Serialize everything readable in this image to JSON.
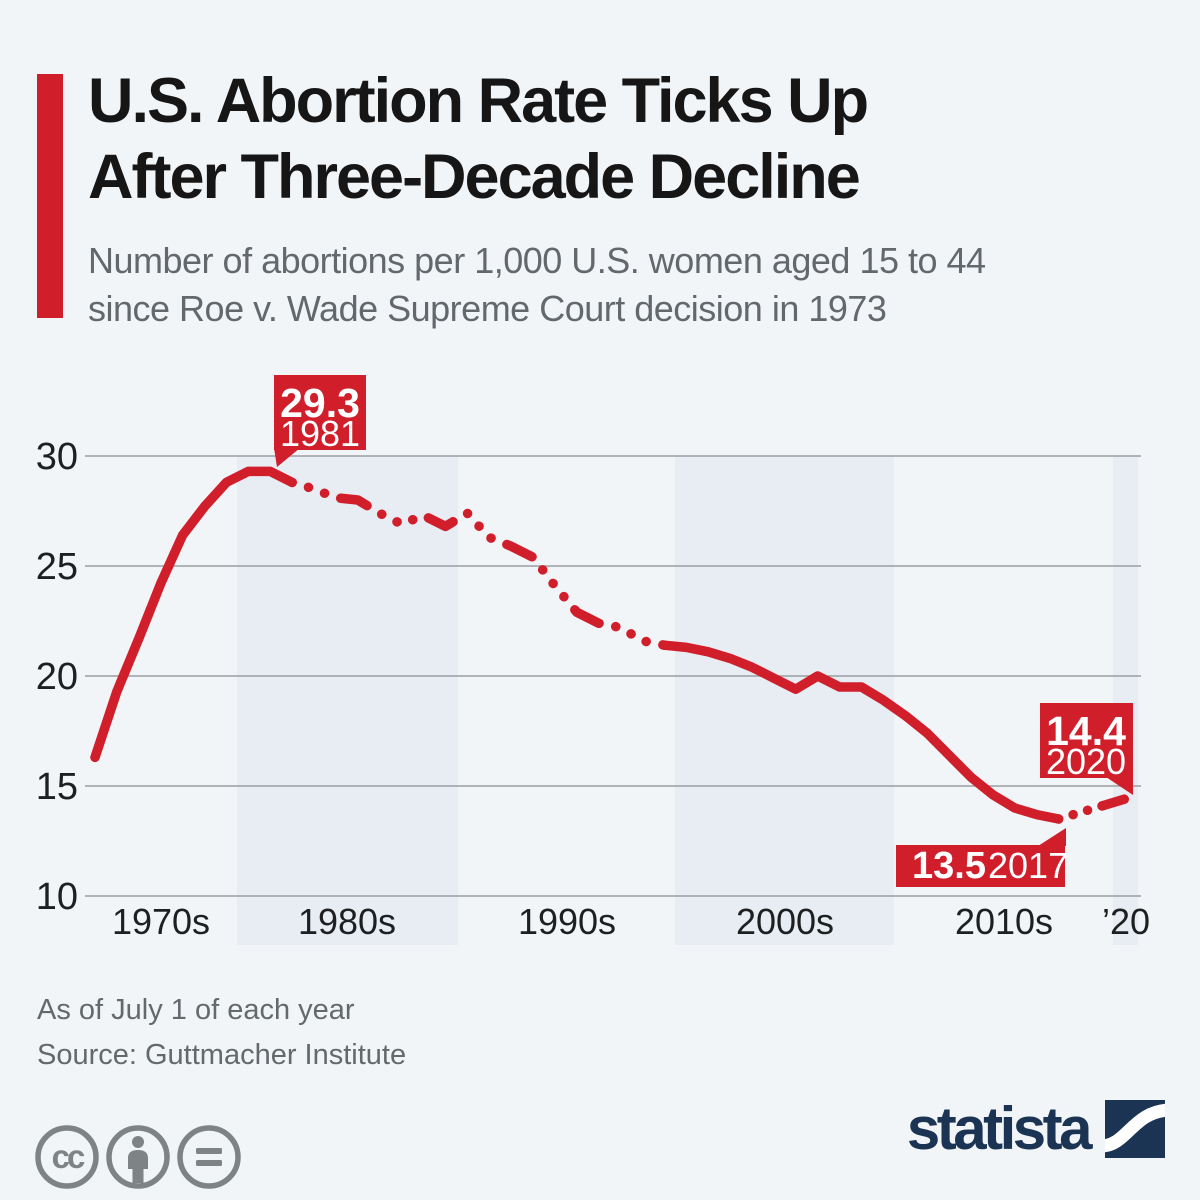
{
  "header": {
    "title_line1": "U.S. Abortion Rate Ticks Up",
    "title_line2": "After Three-Decade Decline",
    "subtitle_line1": "Number of abortions per 1,000 U.S. women aged 15 to 44",
    "subtitle_line2": "since Roe v. Wade Supreme Court decision in 1973",
    "accent_color": "#d11e2b"
  },
  "chart_data": {
    "type": "line",
    "title": "U.S. Abortion Rate Ticks Up After Three-Decade Decline",
    "subtitle": "Number of abortions per 1,000 U.S. women aged 15 to 44 since Roe v. Wade Supreme Court decision in 1973",
    "line_color": "#d11e2b",
    "grid": "horizontal",
    "ylim": [
      10,
      31
    ],
    "y_ticks": [
      "30",
      "25",
      "20",
      "15",
      "10"
    ],
    "x_ticks": [
      "1970s",
      "1980s",
      "1990s",
      "2000s",
      "2010s",
      "’20"
    ],
    "shaded_decades": [
      "1980s",
      "2000s",
      "2020"
    ],
    "x": [
      1973,
      1974,
      1975,
      1976,
      1977,
      1978,
      1979,
      1980,
      1981,
      1982,
      1983,
      1984,
      1985,
      1986,
      1987,
      1988,
      1989,
      1990,
      1991,
      1992,
      1993,
      1994,
      1995,
      1996,
      1997,
      1998,
      1999,
      2000,
      2001,
      2002,
      2003,
      2004,
      2005,
      2006,
      2007,
      2008,
      2009,
      2010,
      2011,
      2012,
      2013,
      2014,
      2015,
      2016,
      2017,
      2018,
      2019,
      2020
    ],
    "values": [
      16.3,
      19.3,
      21.7,
      24.2,
      26.4,
      27.7,
      28.8,
      29.3,
      29.3,
      28.8,
      28.5,
      28.1,
      28.0,
      27.4,
      26.9,
      27.3,
      26.8,
      27.4,
      26.3,
      25.9,
      25.4,
      24.1,
      22.9,
      22.4,
      22.2,
      21.6,
      21.4,
      21.3,
      21.1,
      20.8,
      20.4,
      19.9,
      19.4,
      20.0,
      19.5,
      19.5,
      18.9,
      18.2,
      17.4,
      16.4,
      15.4,
      14.6,
      14.0,
      13.7,
      13.5,
      13.8,
      14.1,
      14.4
    ],
    "segments": [
      {
        "from": 1973,
        "to": 1982,
        "style": "solid"
      },
      {
        "from": 1982,
        "to": 1999,
        "style": "dashdot"
      },
      {
        "from": 1999,
        "to": 2017,
        "style": "solid"
      },
      {
        "from": 2017,
        "to": 2019,
        "style": "dotted"
      },
      {
        "from": 2019,
        "to": 2020,
        "style": "solid"
      }
    ],
    "annotations": [
      {
        "value": "29.3",
        "year": "1981",
        "position": "peak"
      },
      {
        "value": "13.5",
        "year": "2017",
        "position": "low"
      },
      {
        "value": "14.4",
        "year": "2020",
        "position": "latest"
      }
    ]
  },
  "footer": {
    "note": "As of July 1 of each year",
    "source": "Source: Guttmacher Institute",
    "license_icons": [
      "cc",
      "by",
      "nd"
    ],
    "brand": "statista"
  }
}
